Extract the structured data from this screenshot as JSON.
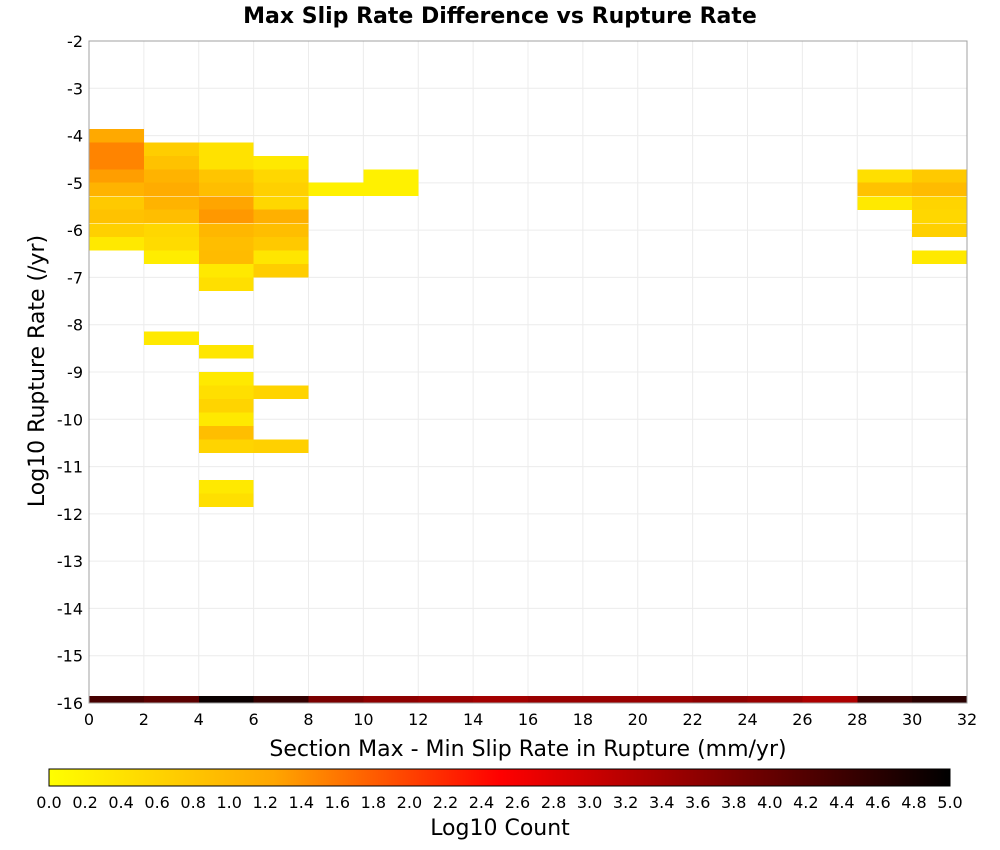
{
  "chart_data": {
    "type": "heatmap",
    "title": "Max Slip Rate Difference vs Rupture Rate",
    "xlabel": "Section Max - Min Slip Rate in Rupture (mm/yr)",
    "ylabel": "Log10 Rupture Rate (/yr)",
    "xlim": [
      0,
      32
    ],
    "ylim": [
      -16,
      -2
    ],
    "x_ticks": [
      "0",
      "2",
      "4",
      "6",
      "8",
      "10",
      "12",
      "14",
      "16",
      "18",
      "20",
      "22",
      "24",
      "26",
      "28",
      "30",
      "32"
    ],
    "y_ticks": [
      "-2",
      "-3",
      "-4",
      "-5",
      "-6",
      "-7",
      "-8",
      "-9",
      "-10",
      "-11",
      "-12",
      "-13",
      "-14",
      "-15",
      "-16"
    ],
    "x_bin_width": 2,
    "y_bin_height": 0.2857,
    "grid": true,
    "colorbar": {
      "label": "Log10 Count",
      "min": 0.0,
      "max": 5.0,
      "ticks": [
        "0.0",
        "0.2",
        "0.4",
        "0.6",
        "0.8",
        "1.0",
        "1.2",
        "1.4",
        "1.6",
        "1.8",
        "2.0",
        "2.2",
        "2.4",
        "2.6",
        "2.8",
        "3.0",
        "3.2",
        "3.4",
        "3.6",
        "3.8",
        "4.0",
        "4.2",
        "4.4",
        "4.6",
        "4.8",
        "5.0"
      ],
      "colors": [
        "#ffff00",
        "#ffa500",
        "#ff0000",
        "#7f0000",
        "#000000"
      ]
    },
    "cells": [
      {
        "x": 0,
        "y": -4.0,
        "v": 1.2
      },
      {
        "x": 0,
        "y": -4.29,
        "v": 1.5
      },
      {
        "x": 0,
        "y": -4.57,
        "v": 1.5
      },
      {
        "x": 0,
        "y": -4.86,
        "v": 1.3
      },
      {
        "x": 0,
        "y": -5.14,
        "v": 1.05
      },
      {
        "x": 0,
        "y": -5.43,
        "v": 0.75
      },
      {
        "x": 0,
        "y": -5.71,
        "v": 0.85
      },
      {
        "x": 0,
        "y": -6.0,
        "v": 0.65
      },
      {
        "x": 0,
        "y": -6.29,
        "v": 0.3
      },
      {
        "x": 2,
        "y": -4.29,
        "v": 0.7
      },
      {
        "x": 2,
        "y": -4.57,
        "v": 0.85
      },
      {
        "x": 2,
        "y": -4.86,
        "v": 1.05
      },
      {
        "x": 2,
        "y": -5.14,
        "v": 1.15
      },
      {
        "x": 2,
        "y": -5.43,
        "v": 1.05
      },
      {
        "x": 2,
        "y": -5.71,
        "v": 0.9
      },
      {
        "x": 2,
        "y": -6.0,
        "v": 0.55
      },
      {
        "x": 2,
        "y": -6.29,
        "v": 0.5
      },
      {
        "x": 2,
        "y": -6.57,
        "v": 0.25
      },
      {
        "x": 2,
        "y": -8.29,
        "v": 0.3
      },
      {
        "x": 4,
        "y": -4.29,
        "v": 0.4
      },
      {
        "x": 4,
        "y": -4.57,
        "v": 0.4
      },
      {
        "x": 4,
        "y": -4.86,
        "v": 0.8
      },
      {
        "x": 4,
        "y": -5.14,
        "v": 0.9
      },
      {
        "x": 4,
        "y": -5.43,
        "v": 1.25
      },
      {
        "x": 4,
        "y": -5.71,
        "v": 1.35
      },
      {
        "x": 4,
        "y": -6.0,
        "v": 1.0
      },
      {
        "x": 4,
        "y": -6.29,
        "v": 0.9
      },
      {
        "x": 4,
        "y": -6.57,
        "v": 0.95
      },
      {
        "x": 4,
        "y": -6.86,
        "v": 0.3
      },
      {
        "x": 4,
        "y": -7.14,
        "v": 0.45
      },
      {
        "x": 4,
        "y": -8.57,
        "v": 0.35
      },
      {
        "x": 4,
        "y": -9.14,
        "v": 0.3
      },
      {
        "x": 4,
        "y": -9.43,
        "v": 0.45
      },
      {
        "x": 4,
        "y": -9.71,
        "v": 0.6
      },
      {
        "x": 4,
        "y": -10.0,
        "v": 0.3
      },
      {
        "x": 4,
        "y": -10.29,
        "v": 0.9
      },
      {
        "x": 4,
        "y": -10.57,
        "v": 0.6
      },
      {
        "x": 4,
        "y": -11.43,
        "v": 0.3
      },
      {
        "x": 4,
        "y": -11.71,
        "v": 0.45
      },
      {
        "x": 6,
        "y": -4.57,
        "v": 0.3
      },
      {
        "x": 6,
        "y": -4.86,
        "v": 0.55
      },
      {
        "x": 6,
        "y": -5.14,
        "v": 0.65
      },
      {
        "x": 6,
        "y": -5.43,
        "v": 0.55
      },
      {
        "x": 6,
        "y": -5.71,
        "v": 1.1
      },
      {
        "x": 6,
        "y": -6.0,
        "v": 0.9
      },
      {
        "x": 6,
        "y": -6.29,
        "v": 0.75
      },
      {
        "x": 6,
        "y": -6.57,
        "v": 0.35
      },
      {
        "x": 6,
        "y": -6.86,
        "v": 0.7
      },
      {
        "x": 6,
        "y": -9.43,
        "v": 0.6
      },
      {
        "x": 6,
        "y": -10.57,
        "v": 0.65
      },
      {
        "x": 8,
        "y": -5.14,
        "v": 0.2
      },
      {
        "x": 10,
        "y": -4.86,
        "v": 0.2
      },
      {
        "x": 10,
        "y": -5.14,
        "v": 0.2
      },
      {
        "x": 28,
        "y": -4.86,
        "v": 0.45
      },
      {
        "x": 28,
        "y": -5.14,
        "v": 0.85
      },
      {
        "x": 28,
        "y": -5.43,
        "v": 0.3
      },
      {
        "x": 30,
        "y": -4.86,
        "v": 0.75
      },
      {
        "x": 30,
        "y": -5.14,
        "v": 0.95
      },
      {
        "x": 30,
        "y": -5.43,
        "v": 0.6
      },
      {
        "x": 30,
        "y": -5.71,
        "v": 0.55
      },
      {
        "x": 30,
        "y": -6.0,
        "v": 0.65
      },
      {
        "x": 30,
        "y": -6.57,
        "v": 0.3
      }
    ],
    "bottom_row": {
      "y": -16,
      "values": [
        4.3,
        4.1,
        4.9,
        4.5,
        3.8,
        3.6,
        3.5,
        3.4,
        3.5,
        3.5,
        3.5,
        3.6,
        3.5,
        3.3,
        4.4,
        4.6
      ]
    }
  }
}
